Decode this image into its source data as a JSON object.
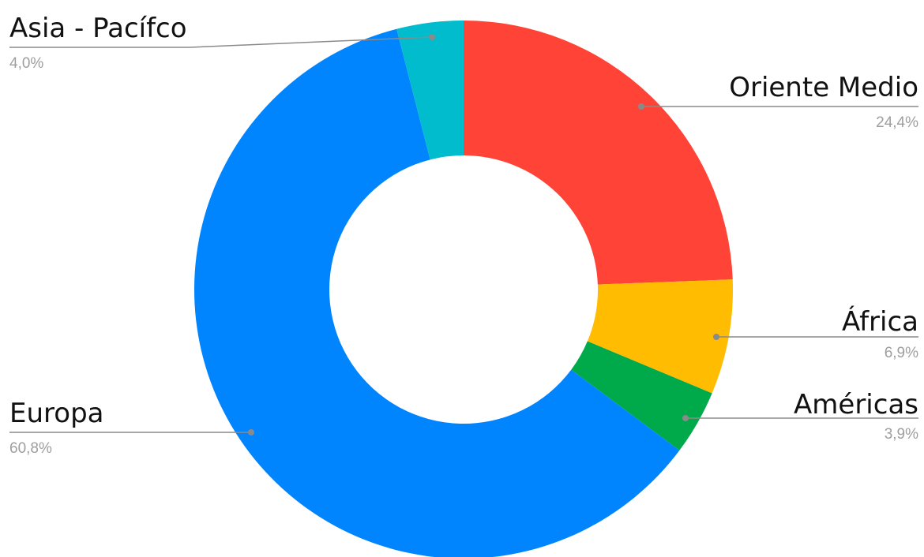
{
  "chart_data": {
    "type": "donut",
    "categories": [
      "Oriente Medio",
      "África",
      "Américas",
      "Europa",
      "Asia - Pacífco"
    ],
    "values": [
      24.4,
      6.9,
      3.9,
      60.8,
      4.0
    ],
    "value_labels": [
      "24,4%",
      "6,9%",
      "3,9%",
      "60,8%",
      "4,0%"
    ],
    "colors": [
      "#ff4336",
      "#ffbc00",
      "#00a94a",
      "#0085ff",
      "#00bccc"
    ]
  }
}
